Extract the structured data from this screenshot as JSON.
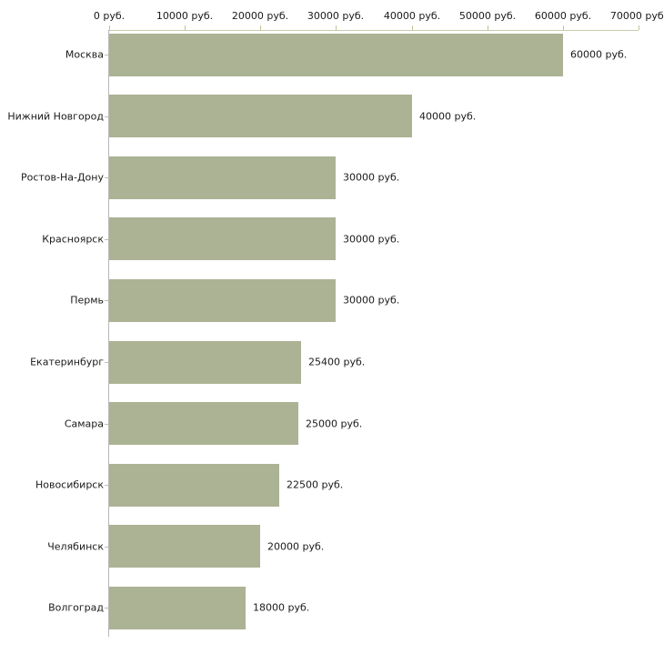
{
  "chart_data": {
    "type": "bar",
    "orientation": "horizontal",
    "title": "",
    "xlabel": "",
    "ylabel": "",
    "xlim": [
      0,
      70000
    ],
    "grid": false,
    "legend": false,
    "categories": [
      "Москва",
      "Нижний Новгород",
      "Ростов-На-Дону",
      "Красноярск",
      "Пермь",
      "Екатеринбург",
      "Самара",
      "Новосибирск",
      "Челябинск",
      "Волгоград"
    ],
    "values": [
      60000,
      40000,
      30000,
      30000,
      30000,
      25400,
      25000,
      22500,
      20000,
      18000
    ],
    "value_labels": [
      "60000 руб.",
      "40000 руб.",
      "30000 руб.",
      "30000 руб.",
      "30000 руб.",
      "25400 руб.",
      "25000 руб.",
      "22500 руб.",
      "20000 руб.",
      "18000 руб."
    ],
    "x_ticks": [
      {
        "value": 0,
        "label": "0 руб."
      },
      {
        "value": 10000,
        "label": "10000 руб."
      },
      {
        "value": 20000,
        "label": "20000 руб."
      },
      {
        "value": 30000,
        "label": "30000 руб."
      },
      {
        "value": 40000,
        "label": "40000 руб."
      },
      {
        "value": 50000,
        "label": "50000 руб."
      },
      {
        "value": 60000,
        "label": "60000 руб."
      },
      {
        "value": 70000,
        "label": "70000 руб."
      }
    ],
    "colors": {
      "bar": "#acb294",
      "x_axis_line": "#c9c9a8",
      "x_tick": "#c2c297",
      "y_axis_line": "#b8b8b8",
      "label_text": "#1a1a1a",
      "background": "#ffffff"
    }
  }
}
